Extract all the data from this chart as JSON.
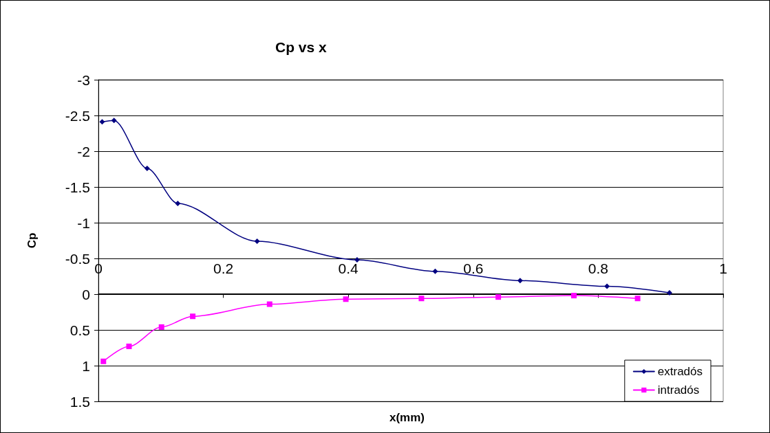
{
  "chart_data": {
    "type": "line",
    "title": "Cp vs x",
    "xlabel": "x(mm)",
    "ylabel": "Cp",
    "xlim": [
      0,
      1
    ],
    "xticks": [
      0,
      0.2,
      0.4,
      0.6,
      0.8,
      1
    ],
    "ylim": [
      1.5,
      -3
    ],
    "yticks": [
      -3,
      -2.5,
      -2,
      -1.5,
      -1,
      -0.5,
      0,
      0.5,
      1,
      1.5
    ],
    "grid": "y",
    "legend": "bottom right",
    "series": [
      {
        "name": "extradós",
        "color": "#000080",
        "marker": "diamond",
        "x": [
          0.006,
          0.025,
          0.078,
          0.127,
          0.254,
          0.414,
          0.539,
          0.675,
          0.814,
          0.914
        ],
        "values": [
          -2.41,
          -2.43,
          -1.76,
          -1.27,
          -0.74,
          -0.48,
          -0.32,
          -0.19,
          -0.11,
          -0.02
        ]
      },
      {
        "name": "intradós",
        "color": "#ff00ff",
        "marker": "square",
        "x": [
          0.008,
          0.049,
          0.101,
          0.151,
          0.274,
          0.396,
          0.517,
          0.64,
          0.761,
          0.863
        ],
        "values": [
          0.94,
          0.73,
          0.46,
          0.31,
          0.14,
          0.07,
          0.06,
          0.04,
          0.02,
          0.06
        ]
      }
    ]
  }
}
